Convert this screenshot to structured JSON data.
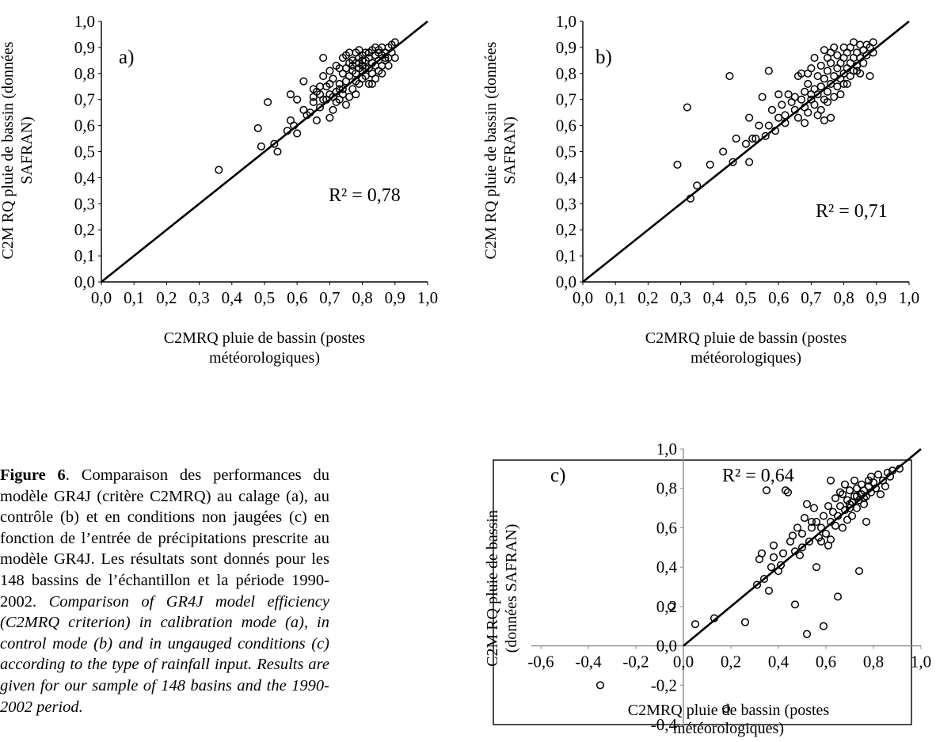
{
  "chart_data": [
    {
      "type": "scatter",
      "panel_label": "a)",
      "annotation": "R² = 0,78",
      "xlabel_lines": [
        "C2MRQ pluie de bassin (postes",
        "météorologiques)"
      ],
      "ylabel_lines": [
        "C2M RQ pluie de bassin (données",
        "SAFRAN)"
      ],
      "xlim": [
        0,
        1
      ],
      "ylim": [
        0,
        1
      ],
      "x_ticks": [
        "0,0",
        "0,1",
        "0,2",
        "0,3",
        "0,4",
        "0,5",
        "0,6",
        "0,7",
        "0,8",
        "0,9",
        "1,0"
      ],
      "y_ticks": [
        "0,0",
        "0,1",
        "0,2",
        "0,3",
        "0,4",
        "0,5",
        "0,6",
        "0,7",
        "0,8",
        "0,9",
        "1,0"
      ],
      "reference_line": [
        [
          0,
          0
        ],
        [
          1,
          1
        ]
      ],
      "grid": false,
      "points": [
        [
          0.36,
          0.43
        ],
        [
          0.48,
          0.59
        ],
        [
          0.49,
          0.52
        ],
        [
          0.51,
          0.69
        ],
        [
          0.53,
          0.53
        ],
        [
          0.54,
          0.5
        ],
        [
          0.57,
          0.58
        ],
        [
          0.58,
          0.62
        ],
        [
          0.58,
          0.72
        ],
        [
          0.59,
          0.6
        ],
        [
          0.6,
          0.57
        ],
        [
          0.6,
          0.7
        ],
        [
          0.62,
          0.77
        ],
        [
          0.63,
          0.64
        ],
        [
          0.64,
          0.65
        ],
        [
          0.65,
          0.69
        ],
        [
          0.65,
          0.71
        ],
        [
          0.66,
          0.73
        ],
        [
          0.66,
          0.62
        ],
        [
          0.67,
          0.67
        ],
        [
          0.67,
          0.72
        ],
        [
          0.68,
          0.79
        ],
        [
          0.68,
          0.86
        ],
        [
          0.69,
          0.7
        ],
        [
          0.69,
          0.75
        ],
        [
          0.7,
          0.63
        ],
        [
          0.7,
          0.72
        ],
        [
          0.7,
          0.81
        ],
        [
          0.71,
          0.66
        ],
        [
          0.71,
          0.71
        ],
        [
          0.71,
          0.78
        ],
        [
          0.72,
          0.83
        ],
        [
          0.72,
          0.69
        ],
        [
          0.73,
          0.74
        ],
        [
          0.73,
          0.76
        ],
        [
          0.73,
          0.7
        ],
        [
          0.74,
          0.72
        ],
        [
          0.74,
          0.8
        ],
        [
          0.74,
          0.86
        ],
        [
          0.75,
          0.68
        ],
        [
          0.75,
          0.77
        ],
        [
          0.75,
          0.82
        ],
        [
          0.75,
          0.87
        ],
        [
          0.76,
          0.71
        ],
        [
          0.76,
          0.79
        ],
        [
          0.76,
          0.88
        ],
        [
          0.77,
          0.74
        ],
        [
          0.77,
          0.81
        ],
        [
          0.77,
          0.85
        ],
        [
          0.78,
          0.72
        ],
        [
          0.78,
          0.8
        ],
        [
          0.78,
          0.84
        ],
        [
          0.78,
          0.88
        ],
        [
          0.79,
          0.76
        ],
        [
          0.79,
          0.82
        ],
        [
          0.79,
          0.86
        ],
        [
          0.8,
          0.78
        ],
        [
          0.8,
          0.83
        ],
        [
          0.8,
          0.87
        ],
        [
          0.8,
          0.81
        ],
        [
          0.81,
          0.79
        ],
        [
          0.81,
          0.85
        ],
        [
          0.81,
          0.88
        ],
        [
          0.82,
          0.76
        ],
        [
          0.82,
          0.82
        ],
        [
          0.82,
          0.86
        ],
        [
          0.83,
          0.8
        ],
        [
          0.83,
          0.84
        ],
        [
          0.83,
          0.89
        ],
        [
          0.84,
          0.78
        ],
        [
          0.84,
          0.83
        ],
        [
          0.84,
          0.87
        ],
        [
          0.85,
          0.81
        ],
        [
          0.85,
          0.85
        ],
        [
          0.85,
          0.89
        ],
        [
          0.86,
          0.83
        ],
        [
          0.86,
          0.87
        ],
        [
          0.86,
          0.9
        ],
        [
          0.87,
          0.85
        ],
        [
          0.87,
          0.88
        ],
        [
          0.88,
          0.86
        ],
        [
          0.88,
          0.9
        ],
        [
          0.89,
          0.88
        ],
        [
          0.89,
          0.91
        ],
        [
          0.9,
          0.86
        ],
        [
          0.9,
          0.92
        ],
        [
          0.84,
          0.9
        ],
        [
          0.82,
          0.88
        ],
        [
          0.79,
          0.84
        ],
        [
          0.77,
          0.83
        ],
        [
          0.76,
          0.84
        ],
        [
          0.74,
          0.74
        ],
        [
          0.72,
          0.73
        ],
        [
          0.7,
          0.76
        ],
        [
          0.68,
          0.7
        ],
        [
          0.67,
          0.75
        ],
        [
          0.86,
          0.8
        ],
        [
          0.88,
          0.83
        ],
        [
          0.83,
          0.76
        ],
        [
          0.81,
          0.82
        ],
        [
          0.8,
          0.85
        ],
        [
          0.79,
          0.89
        ],
        [
          0.87,
          0.86
        ],
        [
          0.85,
          0.88
        ],
        [
          0.73,
          0.82
        ],
        [
          0.78,
          0.77
        ],
        [
          0.65,
          0.74
        ],
        [
          0.62,
          0.66
        ]
      ]
    },
    {
      "type": "scatter",
      "panel_label": "b)",
      "annotation": "R² = 0,71",
      "xlabel_lines": [
        "C2MRQ pluie de bassin (postes",
        "météorologiques)"
      ],
      "ylabel_lines": [
        "C2M RQ pluie de bassin (données",
        "SAFRAN)"
      ],
      "xlim": [
        0,
        1
      ],
      "ylim": [
        0,
        1
      ],
      "x_ticks": [
        "0,0",
        "0,1",
        "0,2",
        "0,3",
        "0,4",
        "0,5",
        "0,6",
        "0,7",
        "0,8",
        "0,9",
        "1,0"
      ],
      "y_ticks": [
        "0,0",
        "0,1",
        "0,2",
        "0,3",
        "0,4",
        "0,5",
        "0,6",
        "0,7",
        "0,8",
        "0,9",
        "1,0"
      ],
      "reference_line": [
        [
          0,
          0
        ],
        [
          1,
          1
        ]
      ],
      "grid": false,
      "points": [
        [
          0.29,
          0.45
        ],
        [
          0.32,
          0.67
        ],
        [
          0.33,
          0.32
        ],
        [
          0.35,
          0.37
        ],
        [
          0.39,
          0.45
        ],
        [
          0.43,
          0.5
        ],
        [
          0.45,
          0.79
        ],
        [
          0.46,
          0.46
        ],
        [
          0.47,
          0.55
        ],
        [
          0.5,
          0.53
        ],
        [
          0.51,
          0.46
        ],
        [
          0.51,
          0.63
        ],
        [
          0.52,
          0.55
        ],
        [
          0.53,
          0.55
        ],
        [
          0.54,
          0.6
        ],
        [
          0.55,
          0.71
        ],
        [
          0.56,
          0.56
        ],
        [
          0.57,
          0.81
        ],
        [
          0.57,
          0.6
        ],
        [
          0.58,
          0.66
        ],
        [
          0.59,
          0.58
        ],
        [
          0.6,
          0.63
        ],
        [
          0.6,
          0.72
        ],
        [
          0.61,
          0.68
        ],
        [
          0.62,
          0.61
        ],
        [
          0.62,
          0.64
        ],
        [
          0.63,
          0.72
        ],
        [
          0.64,
          0.69
        ],
        [
          0.65,
          0.66
        ],
        [
          0.65,
          0.71
        ],
        [
          0.66,
          0.63
        ],
        [
          0.67,
          0.7
        ],
        [
          0.67,
          0.8
        ],
        [
          0.68,
          0.67
        ],
        [
          0.68,
          0.73
        ],
        [
          0.69,
          0.65
        ],
        [
          0.69,
          0.76
        ],
        [
          0.7,
          0.7
        ],
        [
          0.7,
          0.82
        ],
        [
          0.71,
          0.68
        ],
        [
          0.71,
          0.74
        ],
        [
          0.71,
          0.86
        ],
        [
          0.72,
          0.72
        ],
        [
          0.72,
          0.79
        ],
        [
          0.73,
          0.66
        ],
        [
          0.73,
          0.75
        ],
        [
          0.73,
          0.83
        ],
        [
          0.74,
          0.7
        ],
        [
          0.74,
          0.78
        ],
        [
          0.74,
          0.89
        ],
        [
          0.75,
          0.73
        ],
        [
          0.75,
          0.81
        ],
        [
          0.75,
          0.86
        ],
        [
          0.76,
          0.63
        ],
        [
          0.76,
          0.76
        ],
        [
          0.76,
          0.84
        ],
        [
          0.77,
          0.79
        ],
        [
          0.77,
          0.9
        ],
        [
          0.78,
          0.75
        ],
        [
          0.78,
          0.82
        ],
        [
          0.78,
          0.87
        ],
        [
          0.79,
          0.78
        ],
        [
          0.79,
          0.84
        ],
        [
          0.8,
          0.8
        ],
        [
          0.8,
          0.86
        ],
        [
          0.8,
          0.76
        ],
        [
          0.81,
          0.82
        ],
        [
          0.81,
          0.88
        ],
        [
          0.82,
          0.79
        ],
        [
          0.82,
          0.84
        ],
        [
          0.82,
          0.9
        ],
        [
          0.83,
          0.81
        ],
        [
          0.83,
          0.86
        ],
        [
          0.84,
          0.83
        ],
        [
          0.84,
          0.88
        ],
        [
          0.85,
          0.8
        ],
        [
          0.85,
          0.86
        ],
        [
          0.85,
          0.91
        ],
        [
          0.86,
          0.84
        ],
        [
          0.86,
          0.89
        ],
        [
          0.87,
          0.87
        ],
        [
          0.87,
          0.91
        ],
        [
          0.88,
          0.79
        ],
        [
          0.88,
          0.9
        ],
        [
          0.89,
          0.88
        ],
        [
          0.89,
          0.92
        ],
        [
          0.77,
          0.71
        ],
        [
          0.72,
          0.64
        ],
        [
          0.69,
          0.8
        ],
        [
          0.66,
          0.79
        ],
        [
          0.74,
          0.62
        ],
        [
          0.81,
          0.76
        ],
        [
          0.79,
          0.72
        ],
        [
          0.84,
          0.81
        ],
        [
          0.8,
          0.9
        ],
        [
          0.83,
          0.92
        ],
        [
          0.76,
          0.88
        ],
        [
          0.75,
          0.69
        ],
        [
          0.7,
          0.72
        ],
        [
          0.68,
          0.61
        ]
      ]
    },
    {
      "type": "scatter",
      "panel_label": "c)",
      "annotation": "R² = 0,64",
      "xlabel_lines": [
        "C2MRQ pluie de bassin (postes",
        "météorologiques)"
      ],
      "ylabel_lines": [
        "C2M RQ pluie de bassin",
        "(données SAFRAN)"
      ],
      "xlim": [
        -0.6,
        1.0
      ],
      "ylim": [
        -0.4,
        1.0
      ],
      "x_ticks": [
        "-0,6",
        "-0,4",
        "-0,2",
        "0,0",
        "0,2",
        "0,4",
        "0,6",
        "0,8",
        "1,0"
      ],
      "y_ticks": [
        "-0,4",
        "-0,2",
        "0,0",
        "0,2",
        "0,4",
        "0,6",
        "0,8",
        "1,0"
      ],
      "reference_line": [
        [
          0,
          0
        ],
        [
          1,
          1
        ]
      ],
      "grid": false,
      "points": [
        [
          -0.35,
          -0.2
        ],
        [
          -0.05,
          0.2
        ],
        [
          0.05,
          0.11
        ],
        [
          0.13,
          0.14
        ],
        [
          0.18,
          -0.32
        ],
        [
          0.26,
          0.12
        ],
        [
          0.31,
          0.31
        ],
        [
          0.32,
          0.44
        ],
        [
          0.33,
          0.47
        ],
        [
          0.34,
          0.34
        ],
        [
          0.35,
          0.79
        ],
        [
          0.36,
          0.28
        ],
        [
          0.37,
          0.4
        ],
        [
          0.38,
          0.45
        ],
        [
          0.38,
          0.51
        ],
        [
          0.4,
          0.38
        ],
        [
          0.41,
          0.41
        ],
        [
          0.42,
          0.47
        ],
        [
          0.43,
          0.79
        ],
        [
          0.44,
          0.78
        ],
        [
          0.45,
          0.53
        ],
        [
          0.46,
          0.56
        ],
        [
          0.47,
          0.21
        ],
        [
          0.48,
          0.6
        ],
        [
          0.49,
          0.46
        ],
        [
          0.5,
          0.57
        ],
        [
          0.51,
          0.65
        ],
        [
          0.52,
          0.06
        ],
        [
          0.52,
          0.72
        ],
        [
          0.53,
          0.53
        ],
        [
          0.54,
          0.6
        ],
        [
          0.55,
          0.7
        ],
        [
          0.56,
          0.4
        ],
        [
          0.56,
          0.63
        ],
        [
          0.57,
          0.55
        ],
        [
          0.58,
          0.6
        ],
        [
          0.59,
          0.1
        ],
        [
          0.59,
          0.66
        ],
        [
          0.6,
          0.57
        ],
        [
          0.61,
          0.51
        ],
        [
          0.61,
          0.71
        ],
        [
          0.62,
          0.63
        ],
        [
          0.62,
          0.84
        ],
        [
          0.63,
          0.68
        ],
        [
          0.64,
          0.61
        ],
        [
          0.64,
          0.75
        ],
        [
          0.65,
          0.25
        ],
        [
          0.65,
          0.66
        ],
        [
          0.66,
          0.71
        ],
        [
          0.67,
          0.6
        ],
        [
          0.67,
          0.77
        ],
        [
          0.68,
          0.69
        ],
        [
          0.68,
          0.82
        ],
        [
          0.69,
          0.64
        ],
        [
          0.69,
          0.74
        ],
        [
          0.7,
          0.7
        ],
        [
          0.7,
          0.79
        ],
        [
          0.71,
          0.66
        ],
        [
          0.71,
          0.73
        ],
        [
          0.72,
          0.76
        ],
        [
          0.72,
          0.84
        ],
        [
          0.73,
          0.7
        ],
        [
          0.73,
          0.8
        ],
        [
          0.74,
          0.38
        ],
        [
          0.74,
          0.74
        ],
        [
          0.75,
          0.77
        ],
        [
          0.75,
          0.82
        ],
        [
          0.76,
          0.72
        ],
        [
          0.76,
          0.79
        ],
        [
          0.77,
          0.63
        ],
        [
          0.77,
          0.76
        ],
        [
          0.78,
          0.81
        ],
        [
          0.78,
          0.84
        ],
        [
          0.79,
          0.78
        ],
        [
          0.79,
          0.86
        ],
        [
          0.8,
          0.83
        ],
        [
          0.81,
          0.8
        ],
        [
          0.82,
          0.87
        ],
        [
          0.83,
          0.77
        ],
        [
          0.84,
          0.84
        ],
        [
          0.85,
          0.81
        ],
        [
          0.86,
          0.88
        ],
        [
          0.87,
          0.86
        ],
        [
          0.88,
          0.89
        ],
        [
          0.91,
          0.9
        ],
        [
          0.62,
          0.54
        ],
        [
          0.58,
          0.53
        ],
        [
          0.54,
          0.63
        ],
        [
          0.47,
          0.48
        ],
        [
          0.5,
          0.5
        ],
        [
          0.66,
          0.78
        ],
        [
          0.73,
          0.76
        ],
        [
          0.7,
          0.72
        ],
        [
          0.76,
          0.75
        ]
      ]
    }
  ],
  "caption": {
    "figure_label": "Figure 6",
    "french_text": ". Comparaison des performances du modèle GR4J (critère C2MRQ) au calage (a), au contrôle (b) et en conditions non jaugées (c) en fonction de l’entrée de précipitations prescrite au modèle GR4J. Les résultats sont donnés pour les 148 bassins de l’échantillon et la période 1990-2002.",
    "english_text": "Comparison of GR4J model efficiency (C2MRQ criterion) in calibration mode (a), in control mode (b) and in ungauged conditions (c) according to the type of rainfall input. Results are given for our sample of 148 basins and the 1990-2002 period."
  }
}
